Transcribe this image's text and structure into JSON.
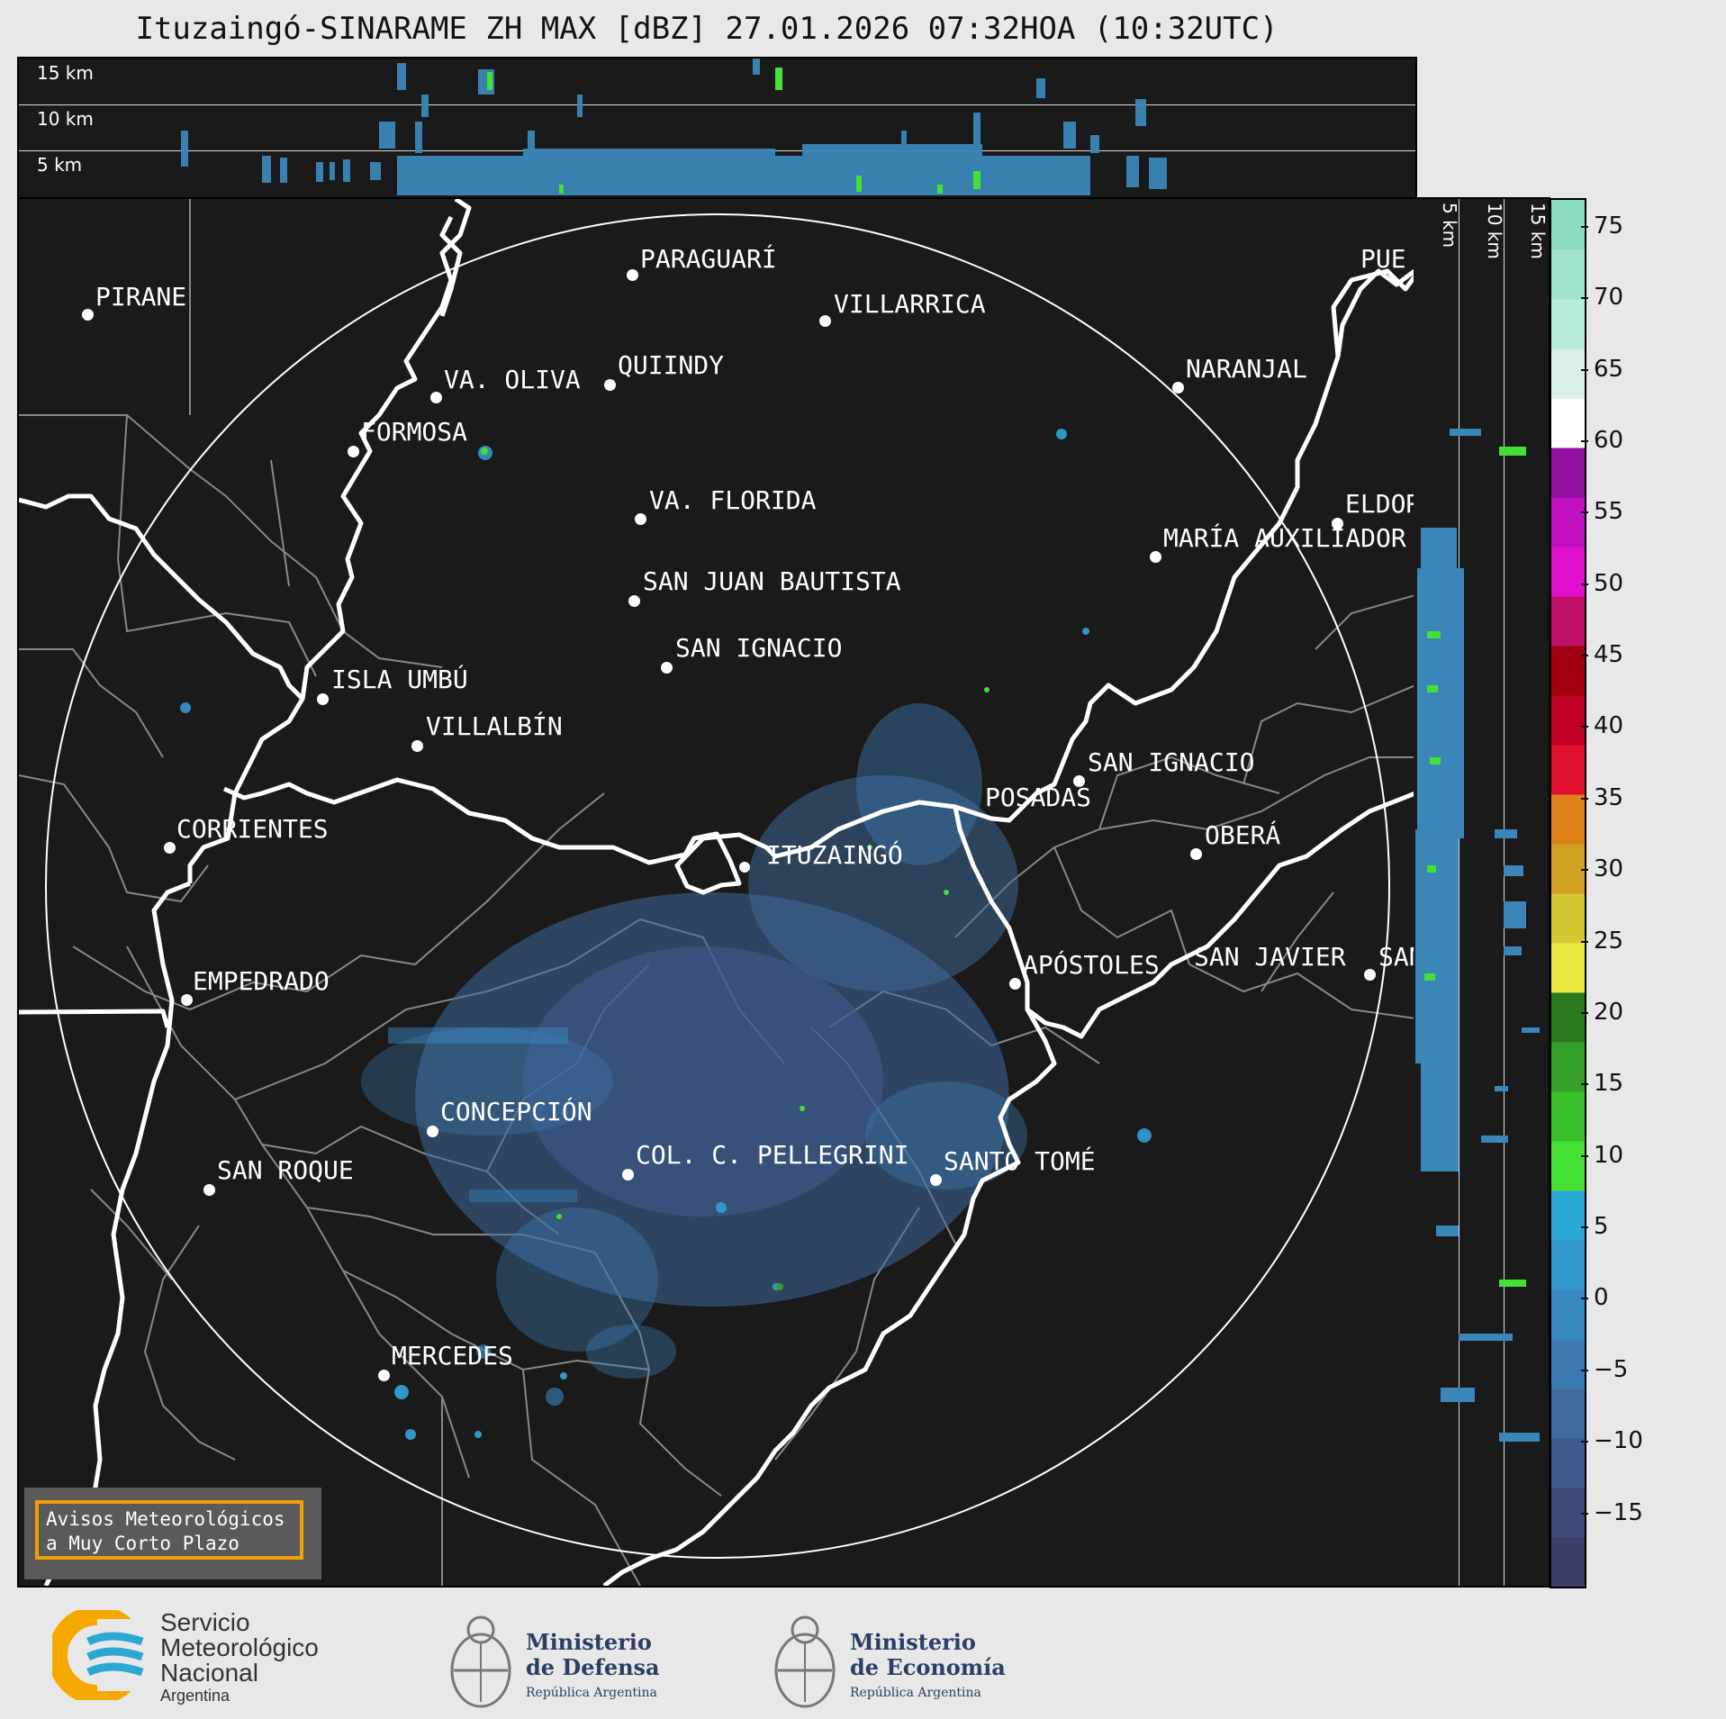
{
  "title": "Ituzaingó-SINARAME ZH MAX [dBZ] 27.01.2026 07:32HOA (10:32UTC)",
  "height_labels": {
    "h15": "15 km",
    "h10": "10 km",
    "h5": "5 km"
  },
  "cities": [
    {
      "name": "PARAGUARÍ"
    },
    {
      "name": "PIRANE"
    },
    {
      "name": "VILLARRICA"
    },
    {
      "name": "QUIINDY"
    },
    {
      "name": "VA. OLIVA"
    },
    {
      "name": "NARANJAL"
    },
    {
      "name": "FORMOSA"
    },
    {
      "name": "VA. FLORIDA"
    },
    {
      "name": "ELDOR"
    },
    {
      "name": "MARÍA AUXILIADOR"
    },
    {
      "name": "SAN JUAN BAUTISTA"
    },
    {
      "name": "SAN IGNACIO"
    },
    {
      "name": "ISLA UMBÚ"
    },
    {
      "name": "VILLALBÍN"
    },
    {
      "name": "SAN IGNACIO"
    },
    {
      "name": "POSADAS"
    },
    {
      "name": "CORRIENTES"
    },
    {
      "name": "ITUZAINGÓ"
    },
    {
      "name": "OBERÁ"
    },
    {
      "name": "EMPEDRADO"
    },
    {
      "name": "APÓSTOLES"
    },
    {
      "name": "SAN JAVIER"
    },
    {
      "name": "SAN"
    },
    {
      "name": "CONCEPCIÓN"
    },
    {
      "name": "COL. C. PELLEGRINI"
    },
    {
      "name": "SANTO TOMÉ"
    },
    {
      "name": "SAN ROQUE"
    },
    {
      "name": "MERCEDES"
    },
    {
      "name": "PUE"
    }
  ],
  "warning": {
    "line1": "Avisos Meteorológicos",
    "line2": "a Muy Corto Plazo"
  },
  "colorbar": {
    "min": -20,
    "max": 77,
    "ticks": [
      "75",
      "70",
      "65",
      "60",
      "55",
      "50",
      "45",
      "40",
      "35",
      "30",
      "25",
      "20",
      "15",
      "10",
      "5",
      "0",
      "−5",
      "−10",
      "−15"
    ],
    "tick_values": [
      75,
      70,
      65,
      60,
      55,
      50,
      45,
      40,
      35,
      30,
      25,
      20,
      15,
      10,
      5,
      0,
      -5,
      -10,
      -15
    ],
    "colors": [
      "#3b3d6a",
      "#3d4a7a",
      "#3f5a8c",
      "#3f6a9c",
      "#3b7ab0",
      "#3888c0",
      "#3196c8",
      "#2aa8d4",
      "#45e035",
      "#3cc02c",
      "#35a028",
      "#2a7a1e",
      "#e8e840",
      "#d4c830",
      "#d0a020",
      "#e08018",
      "#e01030",
      "#c00020",
      "#a00010",
      "#c0106a",
      "#e010d0",
      "#c010c0",
      "#9010a0",
      "#ffffff",
      "#d8f0e8",
      "#b8ecd8",
      "#a0e4c8",
      "#8cdcc0"
    ]
  },
  "logos": {
    "smn": [
      "Servicio",
      "Meteorológico",
      "Nacional",
      "Argentina"
    ],
    "defensa": [
      "Ministerio",
      "de Defensa",
      "República Argentina"
    ],
    "economia": [
      "Ministerio",
      "de Economía",
      "República Argentina"
    ]
  },
  "icons": {
    "smn": "smn-logo-icon",
    "seal": "argentina-seal-icon"
  }
}
